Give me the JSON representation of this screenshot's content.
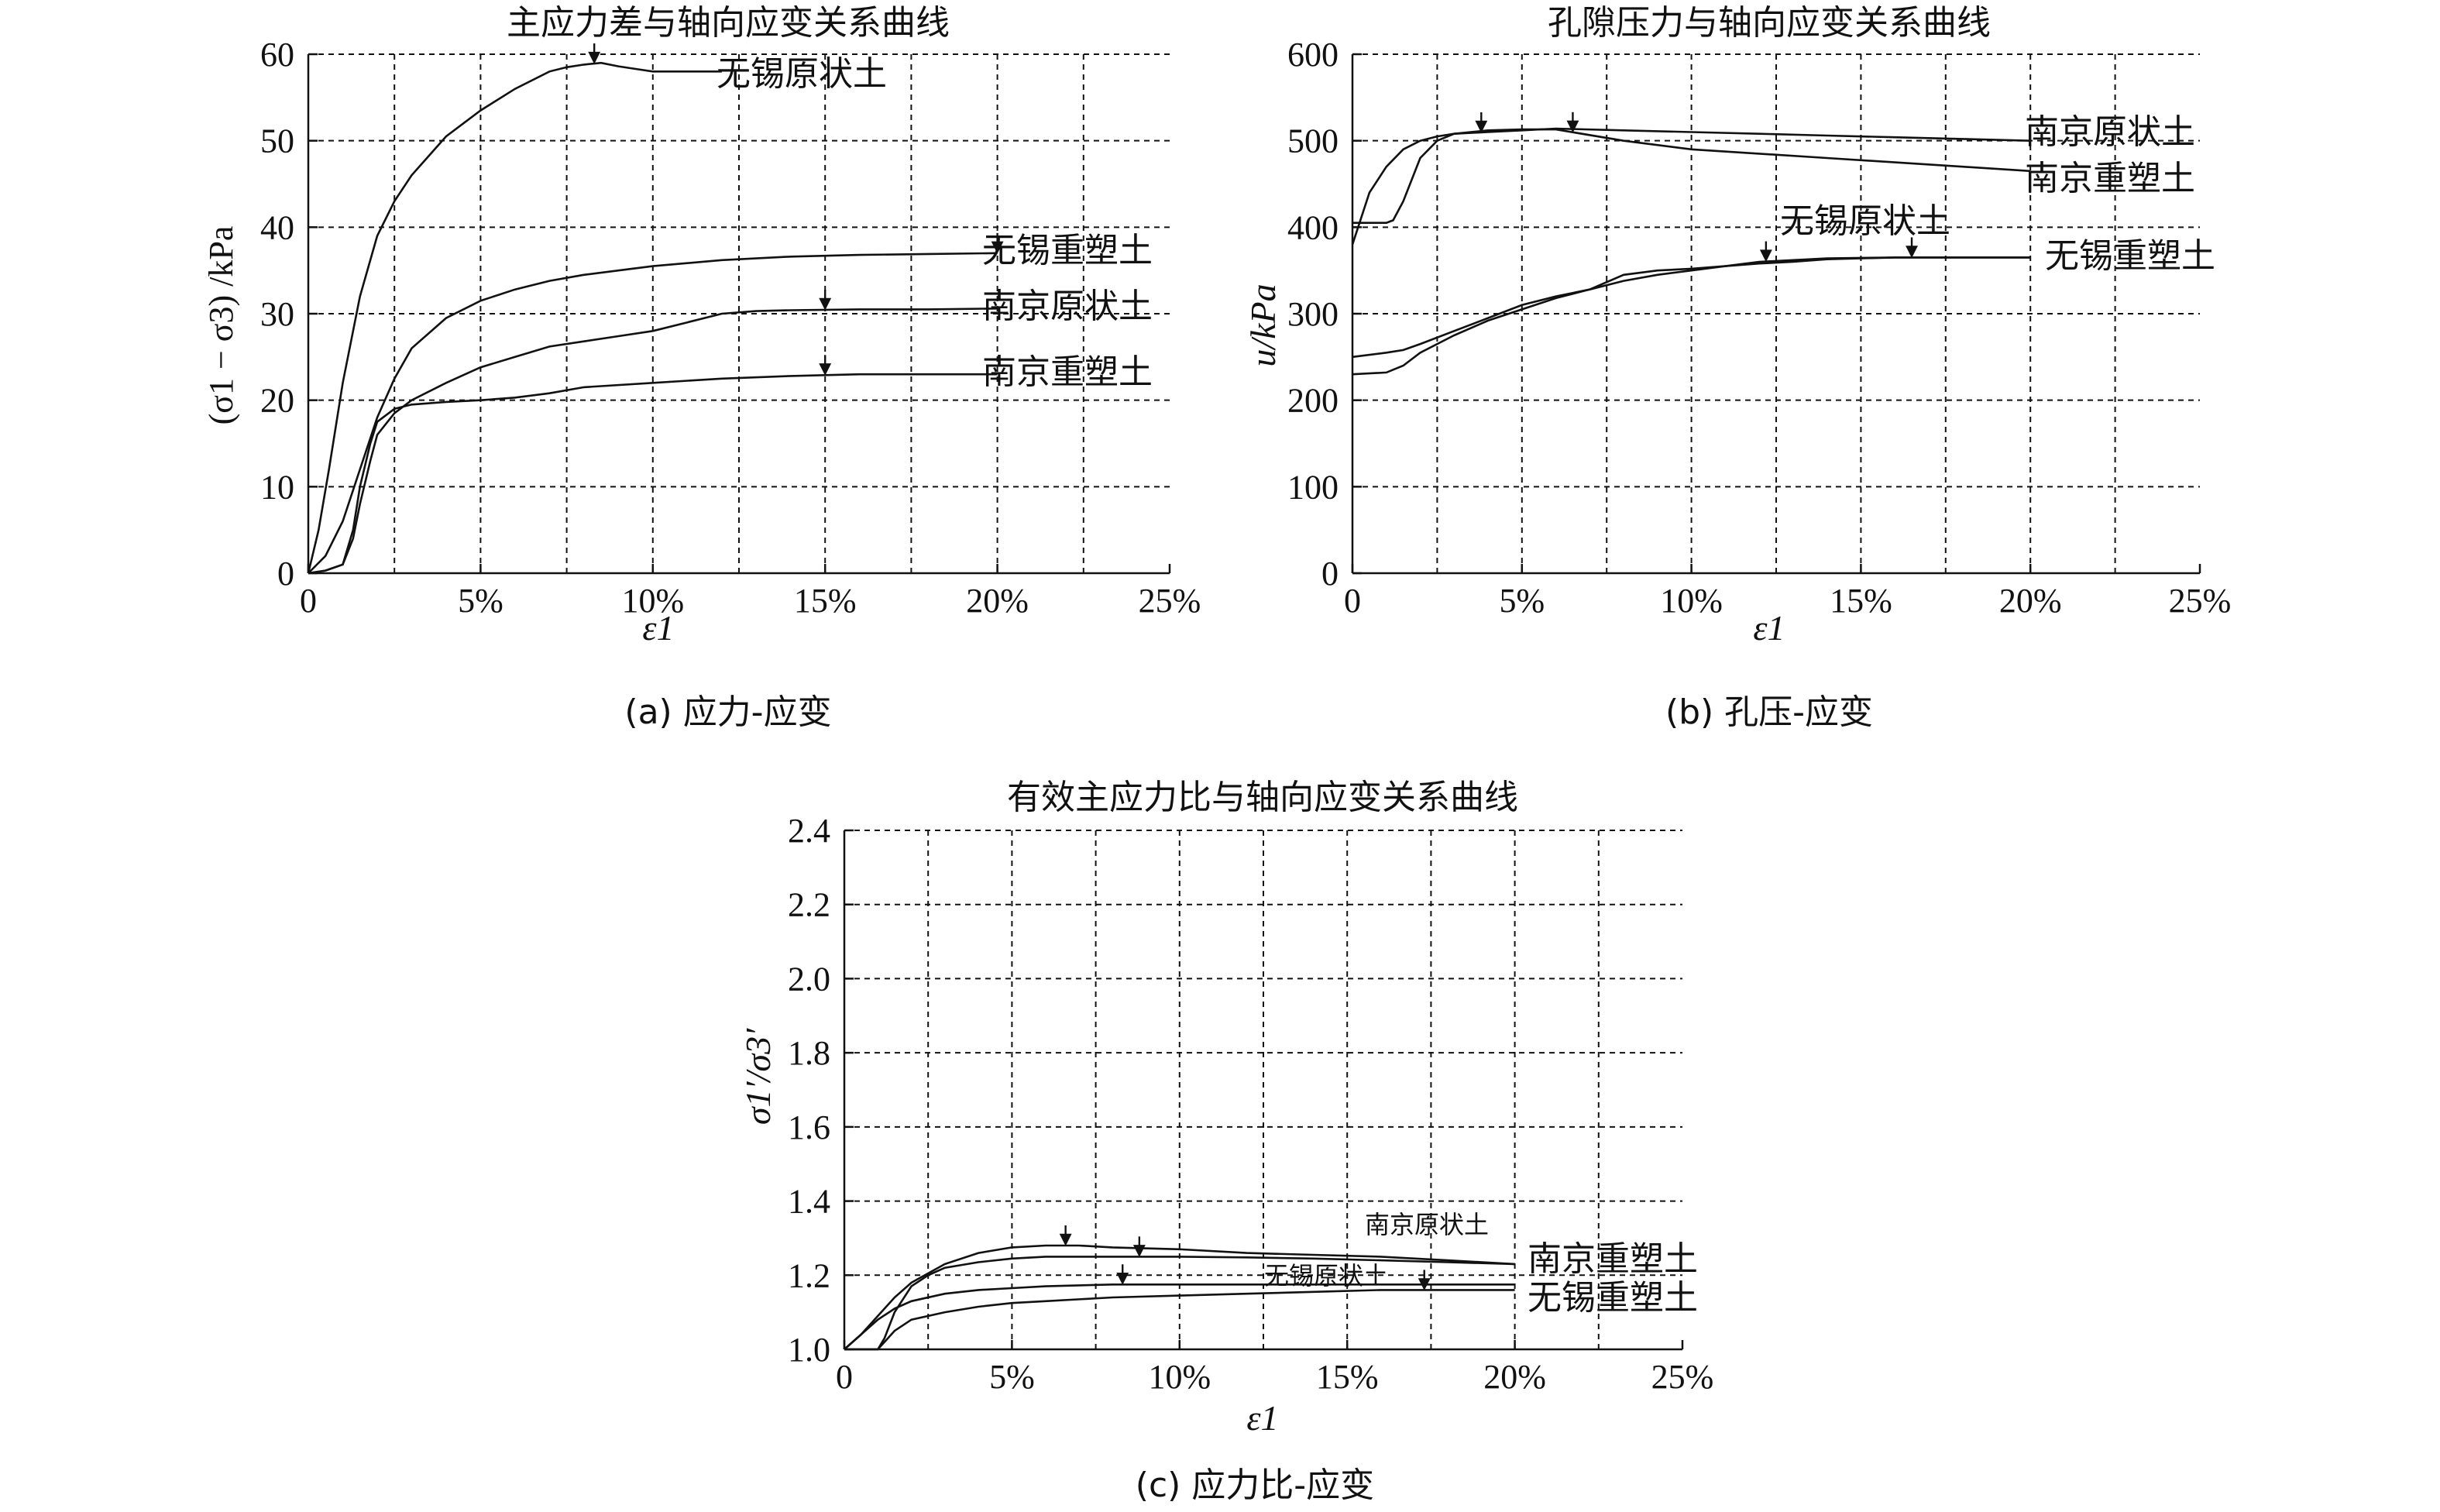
{
  "chart_data": [
    {
      "type": "line",
      "title": "主应力差与轴向应变关系曲线",
      "caption": "(a) 应力-应变",
      "xlabel": "ε1",
      "ylabel": "(σ1 − σ3) /kPa",
      "xlim": [
        0,
        25
      ],
      "ylim": [
        0,
        60
      ],
      "xticks": [
        "0",
        "5%",
        "10%",
        "15%",
        "20%",
        "25%"
      ],
      "yticks": [
        "0",
        "10",
        "20",
        "30",
        "40",
        "50",
        "60"
      ],
      "grid": true,
      "series": [
        {
          "name": "无锡原状土",
          "x": [
            0,
            0.3,
            0.6,
            1,
            1.5,
            2,
            2.5,
            3,
            4,
            5,
            6,
            7,
            7.5,
            8,
            8.5,
            9,
            9.5,
            10,
            10.5,
            11,
            11.5,
            12
          ],
          "values": [
            0,
            5,
            12,
            22,
            32,
            39,
            43,
            46,
            50.5,
            53.5,
            56,
            58,
            58.5,
            58.8,
            59,
            58.6,
            58.3,
            58,
            58,
            58,
            58,
            58
          ],
          "arrow_x": 8.3
        },
        {
          "name": "无锡重塑土",
          "x": [
            0,
            0.5,
            1,
            1.5,
            2,
            2.5,
            3,
            4,
            5,
            6,
            7,
            8,
            9,
            10,
            12,
            14,
            16,
            18,
            20
          ],
          "values": [
            0,
            2,
            6,
            12,
            18,
            22.5,
            26,
            29.5,
            31.5,
            32.8,
            33.8,
            34.5,
            35,
            35.5,
            36.2,
            36.6,
            36.8,
            36.9,
            37
          ],
          "arrow_x": 20
        },
        {
          "name": "南京原状土",
          "x": [
            0,
            0.5,
            1,
            1.3,
            1.5,
            1.8,
            2,
            2.5,
            3,
            4,
            5,
            6,
            7,
            8,
            9,
            10,
            11,
            12,
            13,
            14,
            16,
            18,
            20
          ],
          "values": [
            0,
            0.3,
            1,
            4,
            8,
            13,
            16,
            18.5,
            20,
            22,
            23.8,
            25,
            26.2,
            26.8,
            27.4,
            28,
            29,
            30,
            30.3,
            30.4,
            30.5,
            30.5,
            30.6
          ],
          "arrow_x": 15
        },
        {
          "name": "南京重塑土",
          "x": [
            0,
            0.5,
            1,
            1.3,
            1.5,
            1.8,
            2,
            2.5,
            3,
            4,
            5,
            6,
            7,
            8,
            10,
            12,
            14,
            16,
            18,
            20
          ],
          "values": [
            0,
            0.3,
            1,
            5,
            10,
            15,
            17.5,
            19,
            19.5,
            19.8,
            20,
            20.3,
            20.8,
            21.5,
            22,
            22.5,
            22.8,
            23,
            23,
            23
          ],
          "arrow_x": 15
        }
      ]
    },
    {
      "type": "line",
      "title": "孔隙压力与轴向应变关系曲线",
      "caption": "(b) 孔压-应变",
      "xlabel": "ε1",
      "ylabel": "u/kPa",
      "xlim": [
        0,
        25
      ],
      "ylim": [
        0,
        600
      ],
      "xticks": [
        "0",
        "5%",
        "10%",
        "15%",
        "20%",
        "25%"
      ],
      "yticks": [
        "0",
        "100",
        "200",
        "300",
        "400",
        "500",
        "600"
      ],
      "grid": true,
      "series": [
        {
          "name": "南京原状土",
          "x": [
            0,
            0.5,
            1,
            1.5,
            2,
            2.5,
            3,
            4,
            5,
            6,
            8,
            10,
            12,
            14,
            16,
            18,
            20
          ],
          "values": [
            380,
            440,
            470,
            490,
            500,
            505,
            508,
            510,
            512,
            514,
            512,
            510,
            508,
            506,
            504,
            502,
            500
          ],
          "arrow_x": 3.8
        },
        {
          "name": "南京重塑土",
          "x": [
            0,
            0.5,
            1,
            1.2,
            1.5,
            2,
            2.5,
            3,
            4,
            5,
            6,
            8,
            10,
            12,
            14,
            16,
            18,
            20
          ],
          "values": [
            405,
            405,
            405,
            408,
            430,
            480,
            500,
            508,
            512,
            513,
            513,
            500,
            490,
            485,
            480,
            475,
            470,
            465
          ],
          "arrow_x": 6.5
        },
        {
          "name": "无锡原状土",
          "x": [
            0,
            1,
            1.5,
            2,
            3,
            4,
            5,
            6,
            7,
            8,
            9,
            10,
            11,
            12,
            13,
            14,
            16,
            18,
            20
          ],
          "values": [
            250,
            255,
            258,
            265,
            280,
            295,
            310,
            320,
            328,
            338,
            345,
            350,
            355,
            360,
            362,
            364,
            365,
            365,
            365
          ],
          "arrow_x": 12.2
        },
        {
          "name": "无锡重塑土",
          "x": [
            0,
            1,
            1.5,
            2,
            3,
            4,
            5,
            6,
            7,
            8,
            9,
            10,
            11,
            12,
            13,
            14,
            16,
            18,
            20
          ],
          "values": [
            230,
            232,
            240,
            255,
            275,
            292,
            305,
            318,
            328,
            345,
            350,
            352,
            355,
            358,
            360,
            363,
            365,
            365,
            365
          ],
          "arrow_x": 16.5
        }
      ]
    },
    {
      "type": "line",
      "title": "有效主应力比与轴向应变关系曲线",
      "caption": "(c) 应力比-应变",
      "xlabel": "ε1",
      "ylabel": "σ1′/σ3′",
      "xlim": [
        0,
        25
      ],
      "ylim": [
        1.0,
        2.4
      ],
      "xticks": [
        "0",
        "5%",
        "10%",
        "15%",
        "20%",
        "25%"
      ],
      "yticks": [
        "1.0",
        "1.2",
        "1.4",
        "1.6",
        "1.8",
        "2.0",
        "2.2",
        "2.4"
      ],
      "grid": true,
      "series": [
        {
          "name": "南京原状土",
          "x": [
            0,
            0.5,
            1,
            1.5,
            2,
            3,
            4,
            5,
            6,
            7,
            8,
            10,
            12,
            14,
            16,
            18,
            20
          ],
          "values": [
            1.0,
            1.04,
            1.09,
            1.14,
            1.18,
            1.23,
            1.26,
            1.275,
            1.28,
            1.28,
            1.275,
            1.27,
            1.26,
            1.255,
            1.25,
            1.24,
            1.23
          ],
          "arrow_x": 6.6
        },
        {
          "name": "南京重塑土",
          "x": [
            0,
            1,
            1.2,
            1.5,
            2,
            2.5,
            3,
            4,
            5,
            6,
            8,
            10,
            12,
            14,
            16,
            18,
            20
          ],
          "values": [
            1.0,
            1.0,
            1.03,
            1.1,
            1.17,
            1.2,
            1.22,
            1.235,
            1.245,
            1.25,
            1.25,
            1.25,
            1.248,
            1.245,
            1.24,
            1.235,
            1.23
          ],
          "arrow_x": 8.8
        },
        {
          "name": "无锡原状土",
          "x": [
            0,
            0.5,
            1,
            1.5,
            2,
            3,
            4,
            5,
            6,
            8,
            10,
            12,
            14,
            16,
            18,
            20
          ],
          "values": [
            1.0,
            1.04,
            1.08,
            1.11,
            1.13,
            1.15,
            1.16,
            1.165,
            1.17,
            1.175,
            1.175,
            1.175,
            1.175,
            1.175,
            1.175,
            1.175
          ],
          "arrow_x": 8.3
        },
        {
          "name": "无锡重塑土",
          "x": [
            0,
            1,
            1.5,
            2,
            3,
            4,
            5,
            6,
            8,
            10,
            12,
            14,
            16,
            18,
            20
          ],
          "values": [
            1.0,
            1.0,
            1.05,
            1.08,
            1.1,
            1.115,
            1.125,
            1.13,
            1.14,
            1.145,
            1.15,
            1.155,
            1.16,
            1.16,
            1.16
          ],
          "arrow_x": 17.3
        }
      ]
    }
  ]
}
